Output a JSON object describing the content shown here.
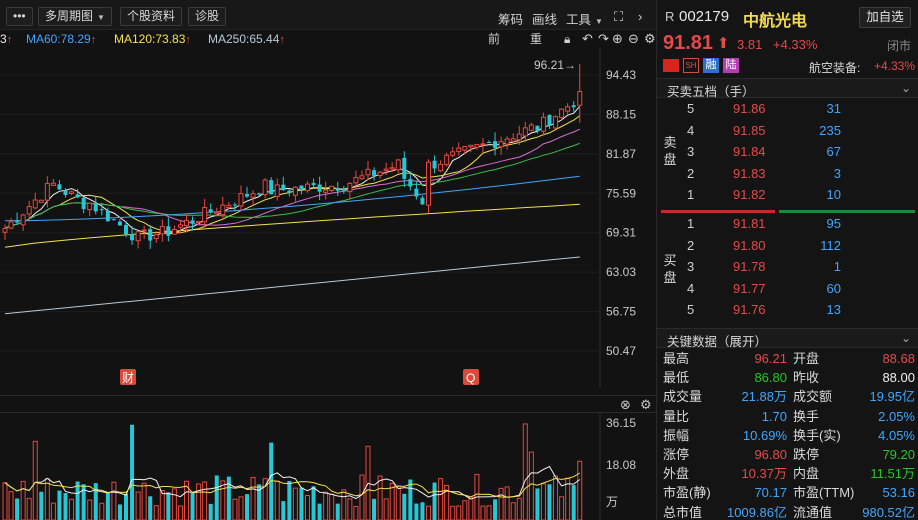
{
  "toolbar": {
    "menu_icon": "•••",
    "period_label": "多周期图",
    "stock_info_label": "个股资料",
    "diagnose_label": "诊股",
    "chip_label": "筹码",
    "draw_label": "画线",
    "tools_label": "工具",
    "expand_icon": "expand-icon",
    "chevron_icon": "chevron-icon"
  },
  "ma_legend": {
    "ma_partial": "3",
    "ma60": "MA60:78.29",
    "ma120": "MA120:73.83",
    "ma250": "MA250:65.44",
    "colors": {
      "ma60": "#3fa6ff",
      "ma120": "#f2e24a",
      "ma250": "#b7c9d8"
    }
  },
  "chart_tools": {
    "adjust_label": "前复权",
    "overlay_label": "重载",
    "lock_icon": "lock-icon",
    "undo_icon": "undo-icon",
    "redo_icon": "redo-icon",
    "zoom_in_icon": "zoom-in-icon",
    "zoom_out_icon": "zoom-out-icon",
    "settings_icon": "gear-icon"
  },
  "price_axis": [
    "94.43",
    "88.15",
    "81.87",
    "75.59",
    "69.31",
    "63.03",
    "56.75",
    "50.47"
  ],
  "high_marker": "96.21→",
  "event_marks": [
    "财",
    "Q"
  ],
  "volume_axis": [
    "36.15",
    "18.08",
    "万"
  ],
  "stock": {
    "prefix": "R",
    "code": "002179",
    "name": "中航光电",
    "add_fav_label": "加自选",
    "price": "91.81",
    "change": "3.81",
    "change_pct": "+4.33%",
    "status": "闭市",
    "tags": [
      "融",
      "陆"
    ],
    "sector": "航空装备:",
    "sector_change": "+4.33%"
  },
  "order_book": {
    "title": "买卖五档（手）",
    "sell_label": "卖盘",
    "buy_label": "买盘",
    "sell": [
      {
        "level": "5",
        "price": "91.86",
        "vol": "31"
      },
      {
        "level": "4",
        "price": "91.85",
        "vol": "235"
      },
      {
        "level": "3",
        "price": "91.84",
        "vol": "67"
      },
      {
        "level": "2",
        "price": "91.83",
        "vol": "3"
      },
      {
        "level": "1",
        "price": "91.82",
        "vol": "10"
      }
    ],
    "buy": [
      {
        "level": "1",
        "price": "91.81",
        "vol": "95"
      },
      {
        "level": "2",
        "price": "91.80",
        "vol": "112"
      },
      {
        "level": "3",
        "price": "91.78",
        "vol": "1"
      },
      {
        "level": "4",
        "price": "91.77",
        "vol": "60"
      },
      {
        "level": "5",
        "price": "91.76",
        "vol": "13"
      }
    ]
  },
  "key_data": {
    "title": "关键数据（展开）",
    "rows": [
      {
        "l1": "最高",
        "v1": "96.21",
        "c1": "red",
        "l2": "开盘",
        "v2": "88.68",
        "c2": "red"
      },
      {
        "l1": "最低",
        "v1": "86.80",
        "c1": "green",
        "l2": "昨收",
        "v2": "88.00",
        "c2": "white"
      },
      {
        "l1": "成交量",
        "v1": "21.88万",
        "c1": "blue",
        "l2": "成交额",
        "v2": "19.95亿",
        "c2": "blue"
      },
      {
        "l1": "量比",
        "v1": "1.70",
        "c1": "blue",
        "l2": "换手",
        "v2": "2.05%",
        "c2": "blue"
      },
      {
        "l1": "振幅",
        "v1": "10.69%",
        "c1": "blue",
        "l2": "换手(实)",
        "v2": "4.05%",
        "c2": "blue"
      },
      {
        "l1": "涨停",
        "v1": "96.80",
        "c1": "red",
        "l2": "跌停",
        "v2": "79.20",
        "c2": "green"
      },
      {
        "l1": "外盘",
        "v1": "10.37万",
        "c1": "red",
        "l2": "内盘",
        "v2": "11.51万",
        "c2": "green"
      },
      {
        "l1": "市盈(静)",
        "v1": "70.17",
        "c1": "blue",
        "l2": "市盈(TTM)",
        "v2": "53.16",
        "c2": "blue"
      },
      {
        "l1": "总市值",
        "v1": "1009.86亿",
        "c1": "blue",
        "l2": "流通值",
        "v2": "980.52亿",
        "c2": "blue"
      }
    ]
  }
}
